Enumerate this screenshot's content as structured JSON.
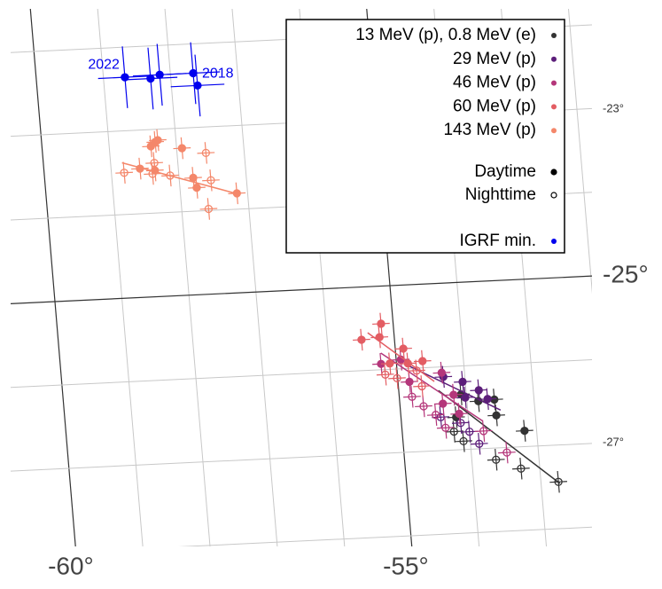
{
  "chart_data": {
    "type": "scatter",
    "xticks": [
      {
        "value": -60,
        "label": "-60°"
      },
      {
        "value": -55,
        "label": "-55°"
      }
    ],
    "yticks": [
      {
        "value": -23,
        "label": "-23°"
      },
      {
        "value": -25,
        "label": "-25°"
      },
      {
        "value": -27,
        "label": "-27°"
      }
    ],
    "lon_grid": [
      -61,
      -60,
      -59,
      -58,
      -57,
      -56,
      -55,
      -54,
      -53,
      -52
    ],
    "lat_grid": [
      -21,
      -22,
      -23,
      -24,
      -25,
      -26,
      -27,
      -28
    ],
    "marker_legend": [
      "Daytime",
      "Nighttime"
    ],
    "series": [
      {
        "name": "13 MeV (p), 0.8 MeV (e)",
        "color": "#333333",
        "lon_err": 0.13,
        "lat_err": 0.13,
        "day_lon": [
          -54.08,
          -53.83,
          -53.59,
          -53.58,
          -53.18,
          -54.18
        ],
        "day_lat": [
          -26.34,
          -26.43,
          -26.42,
          -26.61,
          -26.81,
          -26.61
        ],
        "night_lon": [
          -54.1,
          -53.64,
          -53.28,
          -52.74,
          -54.23
        ],
        "night_lat": [
          -26.9,
          -27.14,
          -27.26,
          -27.44,
          -26.78
        ],
        "fit_lon": [
          -54.41,
          -52.72
        ],
        "fit_lat": [
          -26.28,
          -27.46
        ]
      },
      {
        "name": "29 MeV (p)",
        "color": "#5c1e7a",
        "lon_err": 0.13,
        "lat_err": 0.13,
        "day_lon": [
          -54.32,
          -54.04,
          -53.81,
          -54.02,
          -53.69
        ],
        "day_lat": [
          -26.12,
          -26.19,
          -26.3,
          -26.38,
          -26.41
        ],
        "night_lon": [
          -54.41,
          -54.12,
          -54.0,
          -53.87
        ],
        "night_lat": [
          -26.6,
          -26.68,
          -26.79,
          -26.94
        ],
        "fit_lon": [
          -54.84,
          -53.51
        ],
        "fit_lat": [
          -25.96,
          -26.55
        ]
      },
      {
        "name": "46 MeV (p)",
        "color": "#b4367a",
        "lon_err": 0.13,
        "lat_err": 0.13,
        "day_lon": [
          -55.23,
          -54.93,
          -54.83,
          -54.34,
          -54.19,
          -54.36,
          -54.13
        ],
        "day_lat": [
          -25.93,
          -25.89,
          -26.16,
          -26.07,
          -26.34,
          -26.44,
          -26.57
        ],
        "night_lon": [
          -54.81,
          -54.65,
          -54.48,
          -54.35,
          -53.79,
          -53.47
        ],
        "night_lat": [
          -26.34,
          -26.46,
          -26.57,
          -26.73,
          -26.79,
          -27.06
        ],
        "fit_lon": [
          -55.22,
          -53.79
        ],
        "fit_lat": [
          -25.8,
          -26.67
        ]
      },
      {
        "name": "60 MeV (p)",
        "color": "#e35d63",
        "lon_err": 0.13,
        "lat_err": 0.13,
        "day_lon": [
          -55.18,
          -55.22,
          -55.49,
          -54.88,
          -54.83,
          -54.61,
          -55.1
        ],
        "day_lat": [
          -25.45,
          -25.61,
          -25.63,
          -25.76,
          -25.94,
          -25.92,
          -25.93
        ],
        "night_lon": [
          -55.18,
          -55.01,
          -54.71,
          -54.65
        ],
        "night_lat": [
          -26.06,
          -26.11,
          -26.03,
          -26.22
        ],
        "fit_lon": [
          -55.39,
          -54.46
        ],
        "fit_lat": [
          -25.55,
          -26.17
        ]
      },
      {
        "name": "143 MeV (p)",
        "color": "#f4876a",
        "lon_err": 0.13,
        "lat_err": 0.13,
        "day_lon": [
          -58.31,
          -58.27,
          -58.38,
          -57.92,
          -58.57,
          -58.35,
          -57.79,
          -57.75,
          -57.16
        ],
        "day_lat": [
          -23.15,
          -23.13,
          -23.2,
          -23.24,
          -23.46,
          -23.49,
          -23.6,
          -23.72,
          -23.81
        ],
        "night_lon": [
          -58.81,
          -58.39,
          -58.13,
          -57.57,
          -57.53,
          -57.6,
          -58.35
        ],
        "night_lat": [
          -23.5,
          -23.53,
          -23.56,
          -23.31,
          -23.64,
          -23.98,
          -23.4
        ],
        "fit_lon": [
          -58.83,
          -57.18
        ],
        "fit_lat": [
          -23.38,
          -23.81
        ]
      },
      {
        "name": "IGRF min.",
        "color": "#0000ee",
        "lon_err": 0.4,
        "lat_err": 0.37,
        "day_lon": [
          -58.68,
          -58.3,
          -58.16,
          -57.66,
          -57.61
        ],
        "day_lat": [
          -22.36,
          -22.39,
          -22.35,
          -22.35,
          -22.5
        ],
        "point_labels": [
          "2022",
          "2018"
        ]
      }
    ]
  }
}
